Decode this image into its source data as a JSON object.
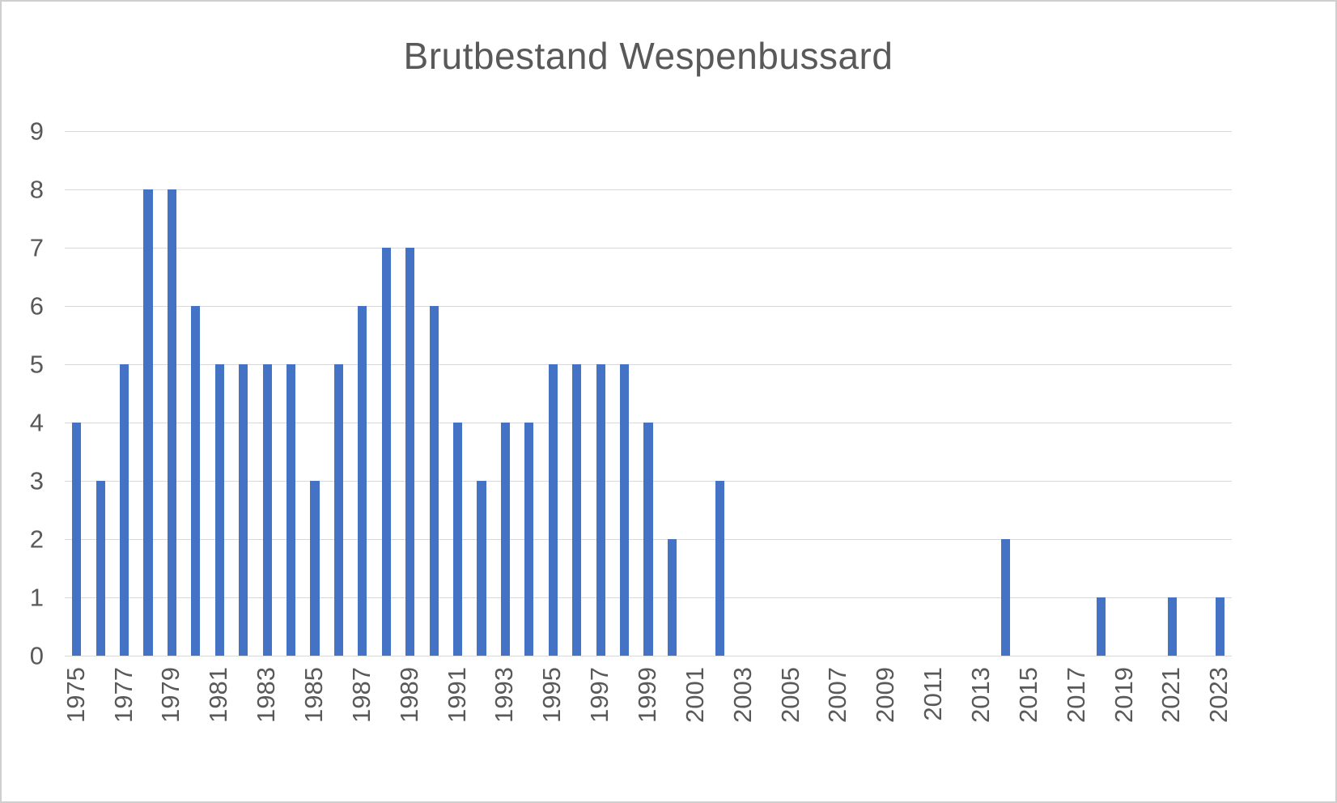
{
  "chart_data": {
    "type": "bar",
    "title": "Brutbestand Wespenbussard",
    "categories": [
      1975,
      1976,
      1977,
      1978,
      1979,
      1980,
      1981,
      1982,
      1983,
      1984,
      1985,
      1986,
      1987,
      1988,
      1989,
      1990,
      1991,
      1992,
      1993,
      1994,
      1995,
      1996,
      1997,
      1998,
      1999,
      2000,
      2001,
      2002,
      2003,
      2004,
      2005,
      2006,
      2007,
      2008,
      2009,
      2010,
      2011,
      2012,
      2013,
      2014,
      2015,
      2016,
      2017,
      2018,
      2019,
      2020,
      2021,
      2022,
      2023
    ],
    "values": [
      4,
      3,
      5,
      8,
      8,
      6,
      5,
      5,
      5,
      5,
      3,
      5,
      6,
      7,
      7,
      6,
      4,
      3,
      4,
      4,
      5,
      5,
      5,
      5,
      4,
      2,
      0,
      3,
      0,
      0,
      0,
      0,
      0,
      0,
      0,
      0,
      0,
      0,
      0,
      2,
      0,
      0,
      0,
      1,
      0,
      0,
      1,
      0,
      1
    ],
    "x_tick_labels": [
      "1975",
      "1977",
      "1979",
      "1981",
      "1983",
      "1985",
      "1987",
      "1989",
      "1991",
      "1993",
      "1995",
      "1997",
      "1999",
      "2001",
      "2003",
      "2005",
      "2007",
      "2009",
      "2011",
      "2013",
      "2015",
      "2017",
      "2019",
      "2021",
      "2023"
    ],
    "y_ticks": [
      0,
      1,
      2,
      3,
      4,
      5,
      6,
      7,
      8,
      9
    ],
    "ylim": [
      0,
      9
    ],
    "grid": true,
    "legend": "none",
    "xlabel": "",
    "ylabel": "",
    "bar_color": "#4472C4",
    "text_color": "#595959",
    "grid_color": "#D9D9D9"
  }
}
